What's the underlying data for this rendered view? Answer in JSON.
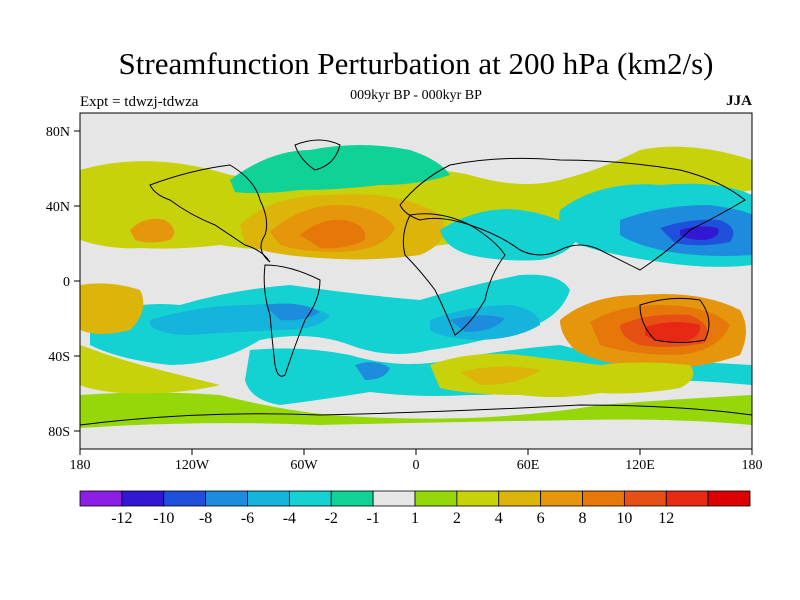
{
  "title": "Streamfunction Perturbation at 200 hPa (km2/s)",
  "subtitle": "009kyr BP - 000kyr BP",
  "experiment": "Expt = tdwzj-tdwza",
  "season": "JJA",
  "map": {
    "lat_ticks": [
      "80N",
      "40N",
      "0",
      "40S",
      "80S"
    ],
    "lon_ticks": [
      "180",
      "120W",
      "60W",
      "0",
      "60E",
      "120E",
      "180"
    ]
  },
  "colorbar": {
    "colors": [
      "#8c1ee6",
      "#3218d2",
      "#1e50dc",
      "#1e8cdc",
      "#14b4dc",
      "#14d2d2",
      "#10d296",
      "#e6e6e6",
      "#96d70a",
      "#c8d20a",
      "#dcb40a",
      "#e6960a",
      "#e6780a",
      "#e65014",
      "#e62814",
      "#dc0000"
    ],
    "labels": [
      "-12",
      "-10",
      "-8",
      "-6",
      "-4",
      "-2",
      "-1",
      "1",
      "2",
      "4",
      "6",
      "8",
      "10",
      "12"
    ]
  }
}
